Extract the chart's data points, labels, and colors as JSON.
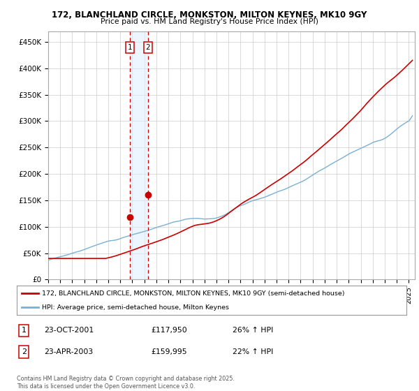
{
  "title1": "172, BLANCHLAND CIRCLE, MONKSTON, MILTON KEYNES, MK10 9GY",
  "title2": "Price paid vs. HM Land Registry's House Price Index (HPI)",
  "legend_line1": "172, BLANCHLAND CIRCLE, MONKSTON, MILTON KEYNES, MK10 9GY (semi-detached house)",
  "legend_line2": "HPI: Average price, semi-detached house, Milton Keynes",
  "transaction1_label": "1",
  "transaction1_date": "23-OCT-2001",
  "transaction1_price": "£117,950",
  "transaction1_hpi": "26% ↑ HPI",
  "transaction2_label": "2",
  "transaction2_date": "23-APR-2003",
  "transaction2_price": "£159,995",
  "transaction2_hpi": "22% ↑ HPI",
  "footer": "Contains HM Land Registry data © Crown copyright and database right 2025.\nThis data is licensed under the Open Government Licence v3.0.",
  "line1_color": "#cc0000",
  "line2_color": "#7ab0d4",
  "fill_color": "#ddeeff",
  "vline_color": "#cc0000",
  "marker1_x": 2001.81,
  "marker1_y": 117950,
  "marker2_x": 2003.31,
  "marker2_y": 159995,
  "vline1_x": 2001.81,
  "vline2_x": 2003.31,
  "ylabel_values": [
    0,
    50000,
    100000,
    150000,
    200000,
    250000,
    300000,
    350000,
    400000,
    450000
  ],
  "ylabel_labels": [
    "£0",
    "£50K",
    "£100K",
    "£150K",
    "£200K",
    "£250K",
    "£300K",
    "£350K",
    "£400K",
    "£450K"
  ],
  "xlim": [
    1995,
    2025.5
  ],
  "ylim": [
    0,
    470000
  ],
  "background_color": "#ffffff",
  "grid_color": "#cccccc"
}
